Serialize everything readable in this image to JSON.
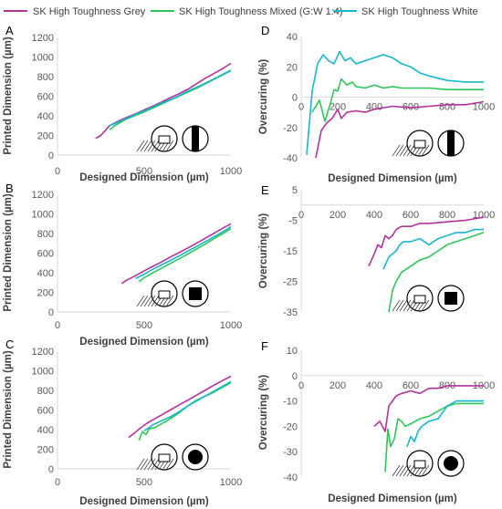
{
  "legend": {
    "placement": "top",
    "entries": [
      {
        "label": "SK High Toughness Grey",
        "color": "#b0349c"
      },
      {
        "label": "SK High Toughness Mixed (G:W 1:4)",
        "color": "#2ec65a"
      },
      {
        "label": "SK High Toughness White",
        "color": "#17b6cc"
      }
    ]
  },
  "chart_data": [
    {
      "panel": "A",
      "type": "line",
      "xlabel": "Designed Dimension (µm)",
      "ylabel": "Printed Dimension (µm)",
      "xlim": [
        0,
        1000
      ],
      "ylim": [
        0,
        1200
      ],
      "xticks": [
        0,
        500,
        1000
      ],
      "yticks": [
        0,
        200,
        400,
        600,
        800,
        1000,
        1200
      ],
      "xtick_labels": [
        "0",
        "500",
        "1000"
      ],
      "ytick_labels": [
        "0",
        "200",
        "400",
        "600",
        "800",
        "1000",
        "1200"
      ],
      "zero_line": false,
      "grid": false,
      "icon": "square-notch",
      "series": [
        {
          "name": "SK High Toughness Grey",
          "color": "#b0349c",
          "x": [
            220,
            250,
            270,
            300,
            350,
            400,
            450,
            500,
            550,
            600,
            650,
            700,
            750,
            800,
            850,
            900,
            950,
            1000
          ],
          "y": [
            170,
            200,
            240,
            300,
            345,
            385,
            420,
            460,
            500,
            540,
            585,
            625,
            670,
            725,
            780,
            830,
            880,
            935
          ]
        },
        {
          "name": "SK High Toughness Mixed (G:W 1:4)",
          "color": "#2ec65a",
          "x": [
            300,
            330,
            360,
            400,
            450,
            500,
            550,
            600,
            650,
            700,
            750,
            800,
            850,
            900,
            950,
            1000
          ],
          "y": [
            260,
            300,
            330,
            370,
            405,
            440,
            480,
            520,
            560,
            600,
            640,
            680,
            725,
            770,
            815,
            860
          ]
        },
        {
          "name": "SK High Toughness White",
          "color": "#17b6cc",
          "x": [
            300,
            350,
            400,
            450,
            500,
            550,
            600,
            650,
            700,
            750,
            800,
            850,
            900,
            950,
            1000
          ],
          "y": [
            300,
            335,
            375,
            415,
            450,
            490,
            530,
            565,
            605,
            650,
            690,
            730,
            775,
            820,
            865
          ]
        }
      ]
    },
    {
      "panel": "B",
      "type": "line",
      "xlabel": "Designed Dimension (µm)",
      "ylabel": "Printed Dimension (µm)",
      "xlim": [
        0,
        1000
      ],
      "ylim": [
        0,
        1200
      ],
      "xticks": [
        0,
        500,
        1000
      ],
      "yticks": [
        0,
        200,
        400,
        600,
        800,
        1000,
        1200
      ],
      "xtick_labels": [
        "0",
        "500",
        "1000"
      ],
      "ytick_labels": [
        "0",
        "200",
        "400",
        "600",
        "800",
        "1000",
        "1200"
      ],
      "zero_line": false,
      "grid": false,
      "icon": "square",
      "series": [
        {
          "name": "SK High Toughness Grey",
          "color": "#b0349c",
          "x": [
            370,
            400,
            450,
            500,
            550,
            600,
            650,
            700,
            750,
            800,
            850,
            900,
            950,
            1000
          ],
          "y": [
            290,
            325,
            370,
            420,
            465,
            510,
            560,
            605,
            650,
            700,
            750,
            800,
            850,
            900
          ]
        },
        {
          "name": "SK High Toughness Mixed (G:W 1:4)",
          "color": "#2ec65a",
          "x": [
            470,
            500,
            550,
            600,
            650,
            700,
            750,
            800,
            850,
            900,
            950,
            1000
          ],
          "y": [
            310,
            350,
            400,
            445,
            495,
            540,
            590,
            640,
            690,
            745,
            795,
            850
          ]
        },
        {
          "name": "SK High Toughness White",
          "color": "#17b6cc",
          "x": [
            450,
            500,
            550,
            600,
            650,
            700,
            750,
            800,
            850,
            900,
            950,
            1000
          ],
          "y": [
            340,
            385,
            435,
            480,
            525,
            570,
            620,
            665,
            715,
            765,
            815,
            870
          ]
        }
      ]
    },
    {
      "panel": "C",
      "type": "line",
      "xlabel": "Designed Dimension (µm)",
      "ylabel": "Printed Dimension (µm)",
      "xlim": [
        0,
        1000
      ],
      "ylim": [
        0,
        1200
      ],
      "xticks": [
        0,
        500,
        1000
      ],
      "yticks": [
        0,
        200,
        400,
        600,
        800,
        1000,
        1200
      ],
      "xtick_labels": [
        "0",
        "500",
        "1000"
      ],
      "ytick_labels": [
        "0",
        "200",
        "400",
        "600",
        "800",
        "1000",
        "1200"
      ],
      "zero_line": false,
      "grid": false,
      "icon": "circle",
      "series": [
        {
          "name": "SK High Toughness Grey",
          "color": "#b0349c",
          "x": [
            410,
            440,
            480,
            520,
            560,
            600,
            650,
            700,
            750,
            800,
            850,
            900,
            950,
            1000
          ],
          "y": [
            320,
            360,
            420,
            470,
            510,
            550,
            600,
            650,
            700,
            750,
            800,
            850,
            900,
            945
          ]
        },
        {
          "name": "SK High Toughness Mixed (G:W 1:4)",
          "color": "#2ec65a",
          "x": [
            470,
            490,
            510,
            530,
            560,
            600,
            650,
            700,
            750,
            800,
            850,
            900,
            950,
            1000
          ],
          "y": [
            290,
            380,
            350,
            410,
            420,
            460,
            510,
            570,
            640,
            700,
            740,
            780,
            830,
            880
          ]
        },
        {
          "name": "SK High Toughness White",
          "color": "#17b6cc",
          "x": [
            500,
            520,
            550,
            600,
            650,
            700,
            750,
            800,
            850,
            900,
            950,
            1000
          ],
          "y": [
            390,
            410,
            450,
            490,
            530,
            580,
            640,
            690,
            740,
            790,
            840,
            890
          ]
        }
      ]
    },
    {
      "panel": "D",
      "type": "line",
      "xlabel": "Designed Dimension (µm)",
      "ylabel": "Overcuring (%)",
      "xlim": [
        0,
        1000
      ],
      "ylim": [
        -40,
        40
      ],
      "xticks": [
        0,
        200,
        400,
        600,
        800,
        1000
      ],
      "yticks": [
        -40,
        -20,
        0,
        20,
        40
      ],
      "xtick_labels": [
        "0",
        "200",
        "400",
        "600",
        "800",
        "1000"
      ],
      "ytick_labels": [
        "-40",
        "-20",
        "0",
        "20",
        "40"
      ],
      "zero_line": true,
      "grid": false,
      "icon": "square-notch",
      "series": [
        {
          "name": "SK High Toughness Grey",
          "color": "#b0349c",
          "x": [
            80,
            110,
            140,
            170,
            200,
            220,
            250,
            300,
            350,
            400,
            500,
            600,
            700,
            800,
            900,
            1000
          ],
          "y": [
            -40,
            -22,
            -17,
            -14,
            -8,
            -14,
            -10,
            -9,
            -10,
            -8,
            -6,
            -7,
            -6,
            -5,
            -5,
            -3
          ]
        },
        {
          "name": "SK High Toughness Mixed (G:W 1:4)",
          "color": "#2ec65a",
          "x": [
            60,
            100,
            130,
            160,
            180,
            200,
            220,
            250,
            280,
            300,
            350,
            400,
            450,
            500,
            550,
            600,
            700,
            800,
            900,
            1000
          ],
          "y": [
            -10,
            -2,
            -16,
            -4,
            5,
            4,
            12,
            8,
            10,
            7,
            6,
            8,
            6,
            7,
            6,
            6,
            6,
            5,
            5,
            5
          ]
        },
        {
          "name": "SK High Toughness White",
          "color": "#17b6cc",
          "x": [
            30,
            60,
            90,
            120,
            150,
            180,
            210,
            240,
            270,
            300,
            350,
            400,
            450,
            500,
            550,
            600,
            650,
            700,
            800,
            900,
            1000
          ],
          "y": [
            -38,
            4,
            22,
            28,
            24,
            22,
            30,
            24,
            26,
            22,
            24,
            26,
            28,
            26,
            22,
            20,
            16,
            14,
            11,
            10,
            10
          ]
        }
      ]
    },
    {
      "panel": "E",
      "type": "line",
      "xlabel": "",
      "ylabel": "Overcuring (%)",
      "xlim": [
        0,
        1000
      ],
      "ylim": [
        -35,
        5
      ],
      "xticks": [
        0,
        200,
        400,
        600,
        800,
        1000
      ],
      "yticks": [
        -35,
        -25,
        -15,
        -5,
        5
      ],
      "xtick_labels": [
        "0",
        "200",
        "400",
        "600",
        "800",
        "1000"
      ],
      "ytick_labels": [
        "-35",
        "-25",
        "-15",
        "-5",
        "5"
      ],
      "zero_line": true,
      "grid": false,
      "icon": "square",
      "series": [
        {
          "name": "SK High Toughness Grey",
          "color": "#b0349c",
          "x": [
            370,
            400,
            420,
            440,
            460,
            480,
            500,
            520,
            550,
            600,
            650,
            700,
            800,
            900,
            1000
          ],
          "y": [
            -20,
            -16,
            -13,
            -14,
            -10,
            -11,
            -10,
            -8,
            -7,
            -7,
            -6,
            -6,
            -5.5,
            -5,
            -4
          ]
        },
        {
          "name": "SK High Toughness Mixed (G:W 1:4)",
          "color": "#2ec65a",
          "x": [
            480,
            500,
            520,
            550,
            600,
            650,
            700,
            750,
            800,
            850,
            900,
            950,
            1000
          ],
          "y": [
            -35,
            -28,
            -25,
            -22,
            -20,
            -18,
            -17,
            -15,
            -13,
            -12,
            -11,
            -10,
            -9
          ]
        },
        {
          "name": "SK High Toughness White",
          "color": "#17b6cc",
          "x": [
            450,
            480,
            500,
            520,
            540,
            560,
            600,
            650,
            700,
            750,
            800,
            850,
            900,
            950,
            1000
          ],
          "y": [
            -21,
            -17,
            -16,
            -15,
            -13,
            -12,
            -12,
            -11,
            -13,
            -11,
            -10,
            -9,
            -9,
            -8,
            -8
          ]
        }
      ]
    },
    {
      "panel": "F",
      "type": "line",
      "xlabel": "Designed Dimension (µm)",
      "ylabel": "Overcuring (%)",
      "xlim": [
        0,
        1000
      ],
      "ylim": [
        -40,
        10
      ],
      "xticks": [
        0,
        200,
        400,
        600,
        800,
        1000
      ],
      "yticks": [
        -40,
        -30,
        -20,
        -10,
        0,
        10
      ],
      "xtick_labels": [
        "0",
        "200",
        "400",
        "600",
        "800",
        "1000"
      ],
      "ytick_labels": [
        "-40",
        "-30",
        "-20",
        "-10",
        "0",
        "10"
      ],
      "zero_line": true,
      "grid": false,
      "icon": "circle",
      "series": [
        {
          "name": "SK High Toughness Grey",
          "color": "#b0349c",
          "x": [
            400,
            430,
            460,
            480,
            500,
            520,
            550,
            600,
            650,
            700,
            750,
            800,
            850,
            900,
            950,
            1000
          ],
          "y": [
            -20,
            -18,
            -22,
            -12,
            -10,
            -8,
            -7,
            -6,
            -7,
            -5,
            -5,
            -4,
            -4,
            -4,
            -4,
            -4
          ]
        },
        {
          "name": "SK High Toughness Mixed (G:W 1:4)",
          "color": "#2ec65a",
          "x": [
            460,
            475,
            490,
            510,
            530,
            550,
            570,
            600,
            650,
            700,
            750,
            800,
            850,
            900,
            950,
            1000
          ],
          "y": [
            -38,
            -21,
            -28,
            -25,
            -17,
            -18,
            -20,
            -19,
            -17,
            -16,
            -14,
            -12,
            -11,
            -11,
            -11,
            -11
          ]
        },
        {
          "name": "SK High Toughness White",
          "color": "#17b6cc",
          "x": [
            580,
            600,
            620,
            640,
            660,
            700,
            750,
            800,
            850,
            900,
            950,
            1000
          ],
          "y": [
            -28,
            -24,
            -26,
            -22,
            -20,
            -18,
            -17,
            -12,
            -10,
            -10,
            -10,
            -10
          ]
        }
      ]
    }
  ]
}
